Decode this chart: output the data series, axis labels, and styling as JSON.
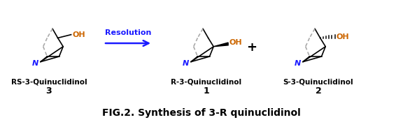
{
  "title": "FIG.2. Synthesis of 3-R quinuclidinol",
  "title_fontsize": 10,
  "title_fontstyle": "bold",
  "bg_color": "#ffffff",
  "text_color": "#000000",
  "label_color": "#000000",
  "resolution_text": "Resolution",
  "resolution_color": "#1a1aff",
  "plus_text": "+",
  "label1": "RS-3-Quinuclidinol",
  "num1": "3",
  "label2": "R-3-Quinuclidinol",
  "num2": "1",
  "label3": "S-3-Quinuclidinol",
  "num3": "2",
  "OH_color": "#cc6600",
  "N_color": "#1a1aff",
  "arrow_color": "#1a1aff",
  "line_color": "#000000",
  "gray_color": "#aaaaaa"
}
